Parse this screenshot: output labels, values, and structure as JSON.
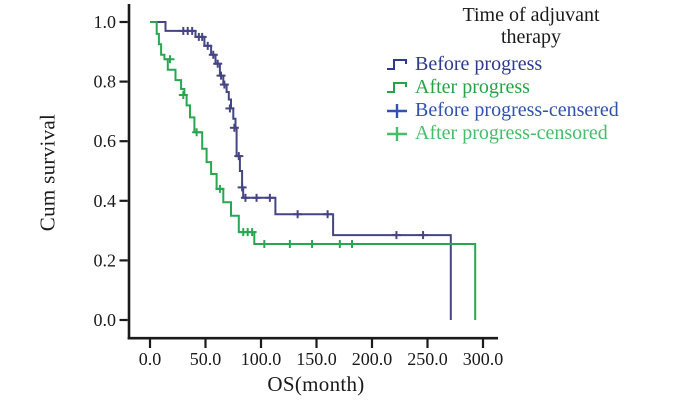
{
  "figure": {
    "background": "#ffffff",
    "axis_color": "#1a1a1a",
    "y_axis": {
      "label": "Cum survival",
      "tick_labels": [
        "1.0",
        "0.8",
        "0.6",
        "0.4",
        "0.2",
        "0.0"
      ],
      "tick_values": [
        1.0,
        0.8,
        0.6,
        0.4,
        0.2,
        0.0
      ]
    },
    "x_axis": {
      "label": "OS(month)",
      "tick_labels": [
        "0.0",
        "50.0",
        "100.0",
        "150.0",
        "200.0",
        "250.0",
        "300.0"
      ],
      "tick_values": [
        0,
        50,
        100,
        150,
        200,
        250,
        300
      ]
    },
    "legend": {
      "title_line1": "Time of adjuvant",
      "title_line2": "therapy",
      "items": [
        {
          "label": "Before progress",
          "marker": "step-line",
          "color": "#2e3a8c"
        },
        {
          "label": "After progress",
          "marker": "step-line",
          "color": "#27a347"
        },
        {
          "label": "Before progress-censered",
          "marker": "plus",
          "color": "#2f52ae"
        },
        {
          "label": "After progress-censored",
          "marker": "plus",
          "color": "#46bd68"
        }
      ]
    }
  },
  "chart_data": {
    "type": "line",
    "subtype": "kaplan-meier-step",
    "title": "Time of adjuvant therapy",
    "xlabel": "OS(month)",
    "ylabel": "Cum survival",
    "xlim": [
      0,
      300
    ],
    "ylim": [
      0.0,
      1.0
    ],
    "grid": false,
    "legend_position": "top-right",
    "series": [
      {
        "name": "Before progress",
        "color": "#454583",
        "steps": [
          [
            0,
            1.0
          ],
          [
            14,
            0.97
          ],
          [
            41,
            0.95
          ],
          [
            49,
            0.92
          ],
          [
            55,
            0.89
          ],
          [
            59,
            0.86
          ],
          [
            63,
            0.82
          ],
          [
            66,
            0.79
          ],
          [
            69,
            0.765
          ],
          [
            71,
            0.74
          ],
          [
            73,
            0.71
          ],
          [
            75,
            0.675
          ],
          [
            77,
            0.645
          ],
          [
            78,
            0.55
          ],
          [
            81,
            0.5
          ],
          [
            83,
            0.445
          ],
          [
            84,
            0.41
          ],
          [
            113,
            0.355
          ],
          [
            165,
            0.285
          ],
          [
            271,
            0.0
          ]
        ],
        "censored": [
          [
            30,
            0.97
          ],
          [
            34,
            0.97
          ],
          [
            38,
            0.97
          ],
          [
            44,
            0.95
          ],
          [
            47,
            0.95
          ],
          [
            52,
            0.92
          ],
          [
            57,
            0.89
          ],
          [
            61,
            0.86
          ],
          [
            64,
            0.82
          ],
          [
            67,
            0.79
          ],
          [
            72,
            0.71
          ],
          [
            76,
            0.645
          ],
          [
            80,
            0.55
          ],
          [
            83,
            0.445
          ],
          [
            86,
            0.41
          ],
          [
            96,
            0.41
          ],
          [
            108,
            0.41
          ],
          [
            133,
            0.355
          ],
          [
            160,
            0.355
          ],
          [
            222,
            0.285
          ],
          [
            246,
            0.285
          ]
        ]
      },
      {
        "name": "After progress",
        "color": "#29a650",
        "steps": [
          [
            0,
            1.0
          ],
          [
            6,
            0.96
          ],
          [
            8,
            0.925
          ],
          [
            10,
            0.89
          ],
          [
            13,
            0.875
          ],
          [
            16,
            0.84
          ],
          [
            23,
            0.805
          ],
          [
            28,
            0.775
          ],
          [
            31,
            0.755
          ],
          [
            33,
            0.72
          ],
          [
            36,
            0.68
          ],
          [
            40,
            0.63
          ],
          [
            47,
            0.575
          ],
          [
            51,
            0.53
          ],
          [
            55,
            0.49
          ],
          [
            60,
            0.44
          ],
          [
            66,
            0.395
          ],
          [
            73,
            0.35
          ],
          [
            80,
            0.295
          ],
          [
            94,
            0.255
          ],
          [
            293,
            0.0
          ]
        ],
        "censored": [
          [
            18,
            0.875
          ],
          [
            30,
            0.755
          ],
          [
            42,
            0.63
          ],
          [
            63,
            0.44
          ],
          [
            84,
            0.295
          ],
          [
            88,
            0.295
          ],
          [
            92,
            0.295
          ],
          [
            103,
            0.255
          ],
          [
            126,
            0.255
          ],
          [
            146,
            0.255
          ],
          [
            171,
            0.255
          ],
          [
            182,
            0.255
          ]
        ]
      }
    ]
  }
}
